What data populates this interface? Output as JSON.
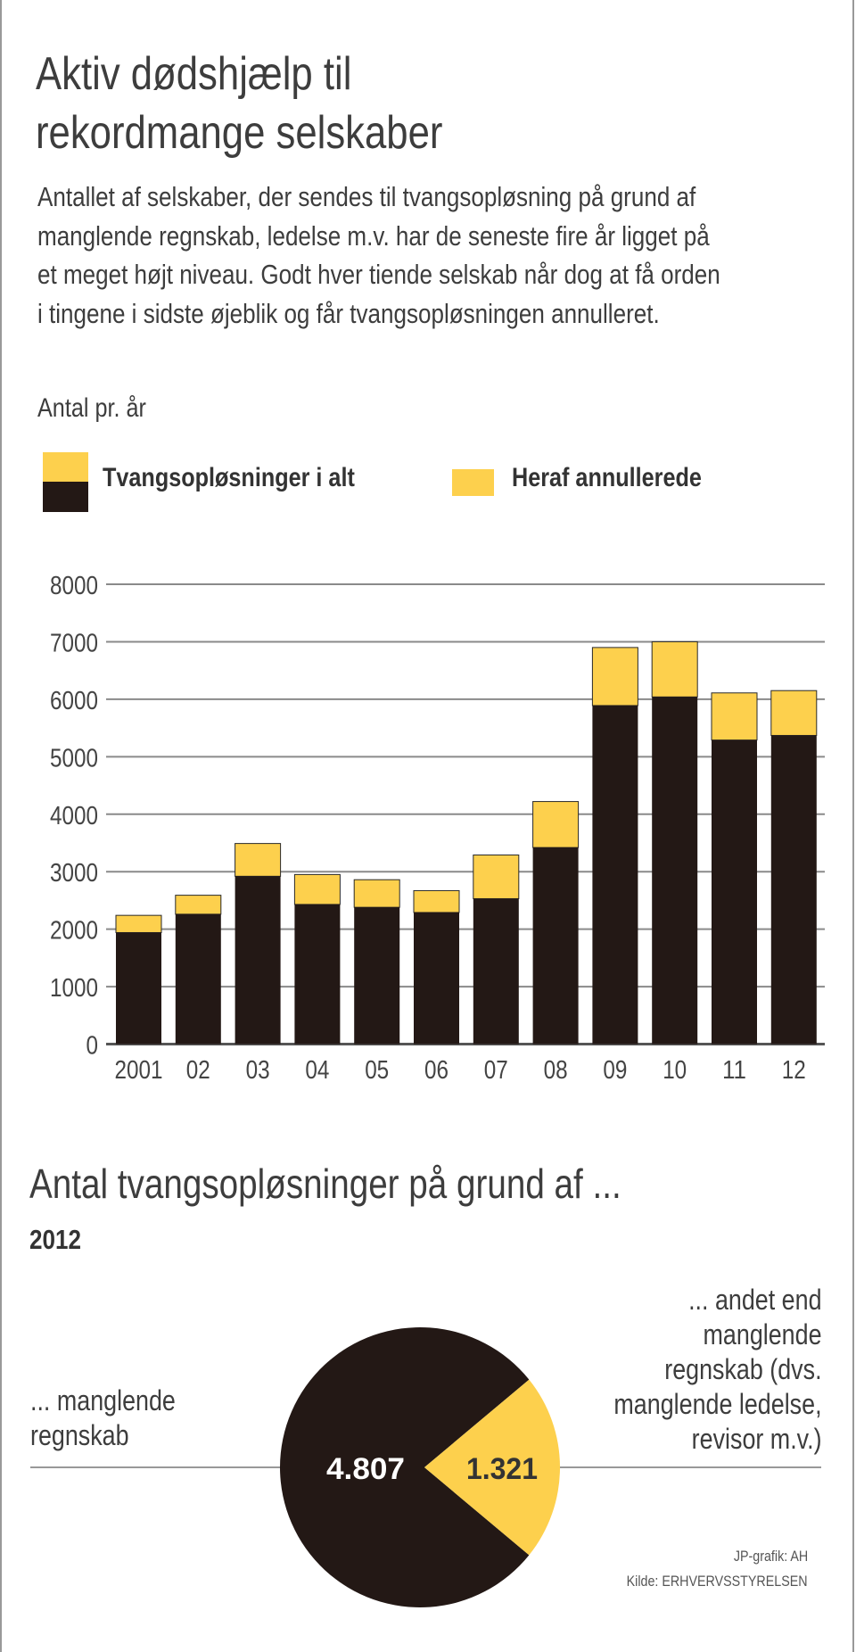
{
  "title_lines": [
    "Aktiv dødshjælp til",
    "rekordmange selskaber"
  ],
  "intro_lines": [
    "Antallet af selskaber, der sendes til tvangsopløsning på grund af",
    "manglende regnskab, ledelse m.v. har de seneste fire år ligget på",
    "et meget højt niveau. Godt hver tiende selskab når dog at få orden",
    "i tingene i sidste øjeblik og får tvangsopløsningen annulleret."
  ],
  "colors": {
    "dark": "#231815",
    "yellow": "#fdd04d",
    "grid": "#8a8a8a",
    "text": "#444444"
  },
  "chart_data": [
    {
      "type": "bar",
      "stacked": true,
      "title": "",
      "ylabel": "Antal pr. år",
      "xlabel": "",
      "ylim": [
        0,
        8000
      ],
      "yticks": [
        "0",
        "1000",
        "2000",
        "3000",
        "4000",
        "5000",
        "6000",
        "7000",
        "8000"
      ],
      "grid": true,
      "legend_position": "top-left",
      "categories": [
        "2001",
        "02",
        "03",
        "04",
        "05",
        "06",
        "07",
        "08",
        "09",
        "10",
        "11",
        "12"
      ],
      "series": [
        {
          "name": "Tvangsopløsninger i alt",
          "values": [
            2240,
            2590,
            3490,
            2950,
            2860,
            2670,
            3290,
            4220,
            6900,
            7000,
            6110,
            6150
          ]
        },
        {
          "name": "Heraf annullerede",
          "values": [
            300,
            330,
            570,
            520,
            480,
            380,
            760,
            800,
            1010,
            960,
            820,
            780
          ]
        }
      ]
    },
    {
      "type": "pie",
      "title": "Antal tvangsopløsninger på grund af ...",
      "subtitle": "2012",
      "slices": [
        {
          "label": "... manglende regnskab",
          "label_lines": [
            "... manglende",
            "regnskab"
          ],
          "value": 4807,
          "value_label": "4.807",
          "color": "#231815"
        },
        {
          "label": "... andet end manglende regnskab (dvs. manglende ledelse, revisor m.v.)",
          "label_lines": [
            "... andet end",
            "manglende",
            "regnskab (dvs.",
            "manglende ledelse,",
            "revisor m.v.)"
          ],
          "value": 1321,
          "value_label": "1.321",
          "color": "#fdd04d"
        }
      ]
    }
  ],
  "credits": {
    "graphic": "JP-grafik: AH",
    "source": "Kilde: ERHVERVSSTYRELSEN"
  }
}
